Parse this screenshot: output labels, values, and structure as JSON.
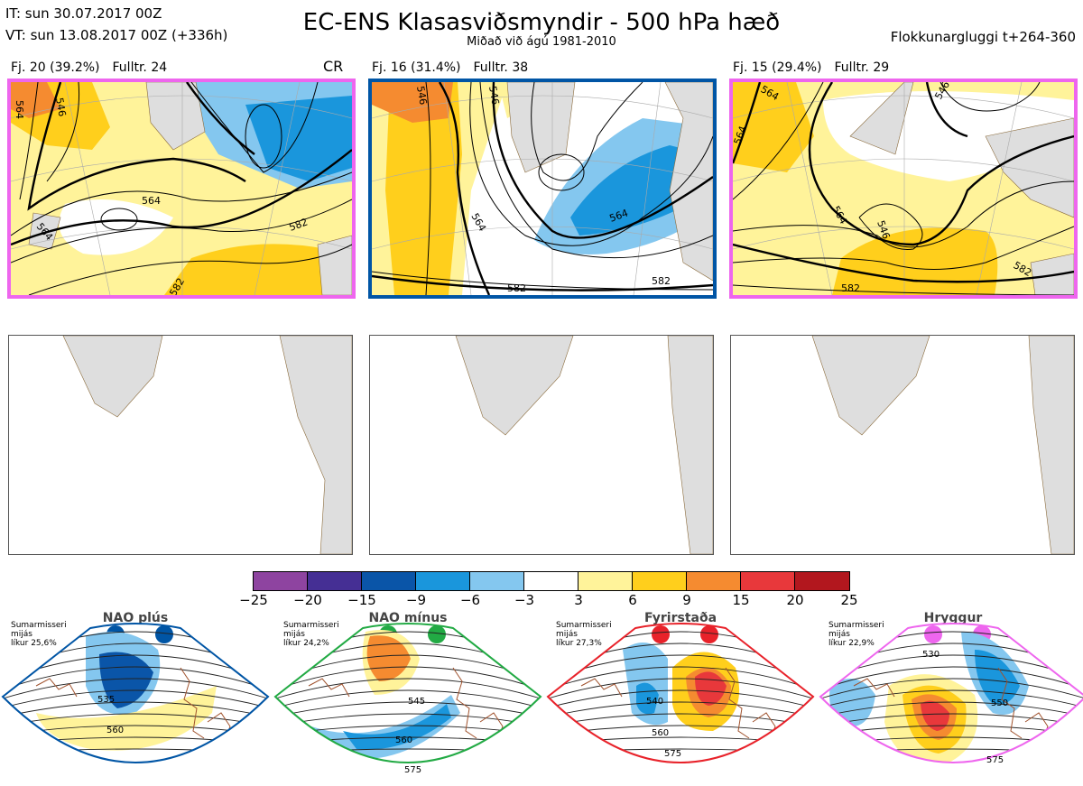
{
  "header": {
    "it_line": "IT: sun 30.07.2017 00Z",
    "vt_line": "VT: sun 13.08.2017 00Z  (+336h)",
    "title": "EC-ENS Klasasviðsmyndir - 500 hPa hæð",
    "subtitle": "Miðað við ágú 1981-2010",
    "window": "Flokkunargluggi t+264-360"
  },
  "clusters": [
    {
      "fj": "Fj. 20 (39.2%)",
      "fulltr": "Fulltr. 24",
      "border_color": "#ee66ee",
      "tag": "CR",
      "contour_labels": [
        "546",
        "564",
        "564",
        "564",
        "582",
        "582"
      ]
    },
    {
      "fj": "Fj. 16 (31.4%)",
      "fulltr": "Fulltr. 38",
      "border_color": "#0055a5",
      "tag": "",
      "contour_labels": [
        "546",
        "546",
        "564",
        "564",
        "582",
        "582"
      ]
    },
    {
      "fj": "Fj. 15 (29.4%)",
      "fulltr": "Fulltr. 29",
      "border_color": "#ee66ee",
      "tag": "",
      "contour_labels": [
        "564",
        "546",
        "546",
        "564",
        "564",
        "582",
        "582"
      ]
    }
  ],
  "colorbar": {
    "colors": [
      "#8e44a0",
      "#452f94",
      "#0a55a8",
      "#1a96dc",
      "#84c7ef",
      "#ffffff",
      "#fff39a",
      "#ffcf1c",
      "#f58b30",
      "#e8383b",
      "#b2171e"
    ],
    "ticks": [
      "−25",
      "−20",
      "−15",
      "−9",
      "−6",
      "−3",
      "3",
      "6",
      "9",
      "15",
      "20",
      "25"
    ]
  },
  "regimes": [
    {
      "name": "NAO plús",
      "note": [
        "Sumarmisseri",
        "mijás",
        "líkur 25,6%"
      ],
      "color": "#0055a5",
      "labels": [
        "535",
        "560"
      ]
    },
    {
      "name": "NAO mínus",
      "note": [
        "Sumarmisseri",
        "mijás",
        "líkur 24,2%"
      ],
      "color": "#22aa44",
      "labels": [
        "545",
        "560",
        "575"
      ]
    },
    {
      "name": "Fyrirstaða",
      "note": [
        "Sumarmisseri",
        "mijás",
        "líkur 27,3%"
      ],
      "color": "#e8222a",
      "labels": [
        "540",
        "560",
        "575"
      ]
    },
    {
      "name": "Hryggur",
      "note": [
        "Sumarmisseri",
        "mijás",
        "líkur 22,9%"
      ],
      "color": "#ee66ee",
      "labels": [
        "530",
        "550",
        "575"
      ]
    }
  ]
}
